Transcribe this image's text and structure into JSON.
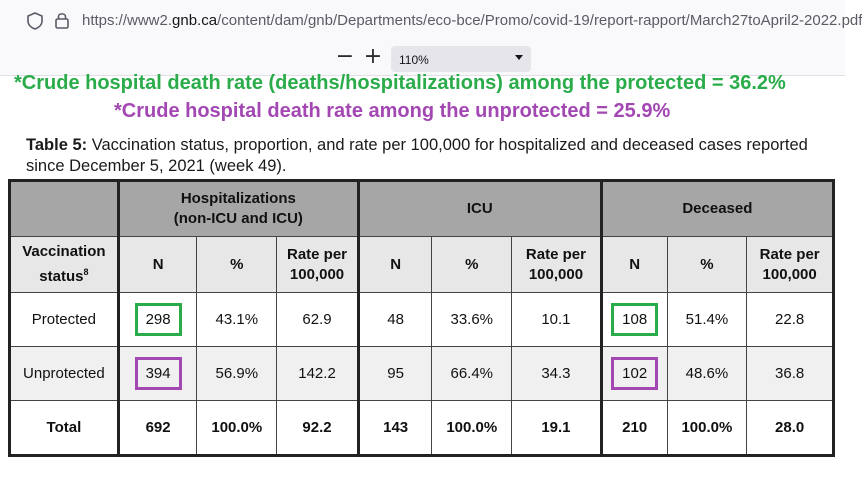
{
  "browser": {
    "url_prefix": "https://www2.",
    "url_domain": "gnb.ca",
    "url_path": "/content/dam/gnb/Departments/eco-bce/Promo/covid-19/report-rapport/March27toApril2-2022.pdf"
  },
  "pdf_toolbar": {
    "zoom_out": "−",
    "zoom_in": "+",
    "zoom_value": "110%"
  },
  "annotations": {
    "protected_rate": "*Crude hospital death rate (deaths/hospitalizations) among the protected = 36.2%",
    "unprotected_rate": "*Crude hospital death rate among the unprotected = 25.9%",
    "protected_color": "#2aac4a",
    "unprotected_color": "#a347b3"
  },
  "caption": {
    "label": "Table 5:",
    "text": " Vaccination status, proportion, and rate per 100,000 for hospitalized and deceased cases reported since December 5, 2021 (week 49)."
  },
  "table": {
    "groups": {
      "hospitalizations_line1": "Hospitalizations",
      "hospitalizations_line2": "(non-ICU and ICU)",
      "icu": "ICU",
      "deceased": "Deceased"
    },
    "subheaders": {
      "vacc_status": "Vaccination status",
      "vacc_sup": "8",
      "n": "N",
      "pct": "%",
      "rate_line1": "Rate per",
      "rate_line2": "100,000"
    },
    "rows": [
      {
        "label": "Protected",
        "hosp_n": "298",
        "hosp_pct": "43.1%",
        "hosp_rate": "62.9",
        "icu_n": "48",
        "icu_pct": "33.6%",
        "icu_rate": "10.1",
        "dec_n": "108",
        "dec_pct": "51.4%",
        "dec_rate": "22.8"
      },
      {
        "label": "Unprotected",
        "hosp_n": "394",
        "hosp_pct": "56.9%",
        "hosp_rate": "142.2",
        "icu_n": "95",
        "icu_pct": "66.4%",
        "icu_rate": "34.3",
        "dec_n": "102",
        "dec_pct": "48.6%",
        "dec_rate": "36.8"
      },
      {
        "label": "Total",
        "hosp_n": "692",
        "hosp_pct": "100.0%",
        "hosp_rate": "92.2",
        "icu_n": "143",
        "icu_pct": "100.0%",
        "icu_rate": "19.1",
        "dec_n": "210",
        "dec_pct": "100.0%",
        "dec_rate": "28.0"
      }
    ]
  }
}
